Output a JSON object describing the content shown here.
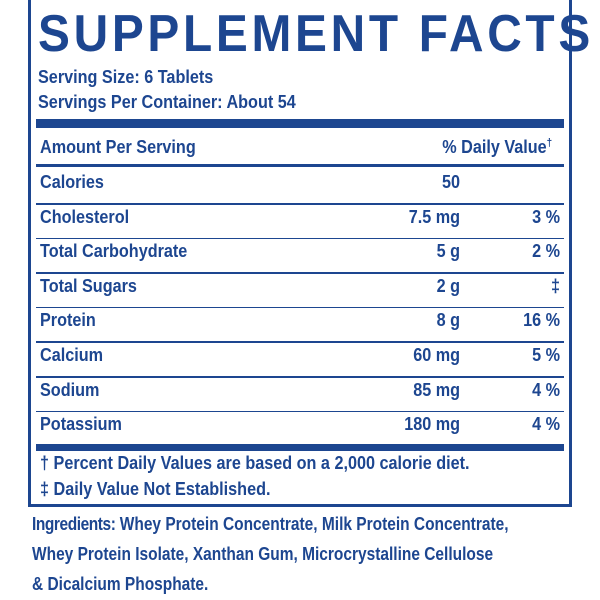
{
  "header": {
    "title": "SUPPLEMENT FACTS",
    "serving_size": "Serving Size: 6 Tablets",
    "servings_per_container": "Servings Per Container: About 54"
  },
  "table": {
    "amount_header": "Amount Per Serving",
    "daily_value_header": "% Daily Value",
    "daily_value_mark": "†",
    "rows": [
      {
        "name": "Calories",
        "amount": "50"
      },
      {
        "name": "Cholesterol",
        "amount": "7.5 mg",
        "dv": "3 %"
      },
      {
        "name": "Total Carbohydrate",
        "amount": "5 g",
        "dv": "2 %"
      },
      {
        "name": "Total Sugars",
        "amount": "2 g",
        "dv": "‡"
      },
      {
        "name": "Protein",
        "amount": "8 g",
        "dv": "16 %"
      },
      {
        "name": "Calcium",
        "amount": "60 mg",
        "dv": "5 %"
      },
      {
        "name": "Sodium",
        "amount": "85 mg",
        "dv": "4 %"
      },
      {
        "name": "Potassium",
        "amount": "180 mg",
        "dv": "4 %"
      }
    ]
  },
  "footnotes": [
    "† Percent Daily Values are based on a 2,000 calorie diet.",
    "‡ Daily Value Not Established."
  ],
  "ingredients": {
    "label": "Ingredients:",
    "lines": [
      "Whey Protein Concentrate, Milk Protein Concentrate,",
      "Whey Protein Isolate, Xanthan Gum, Microcrystalline Cellulose",
      "& Dicalcium Phosphate."
    ]
  }
}
